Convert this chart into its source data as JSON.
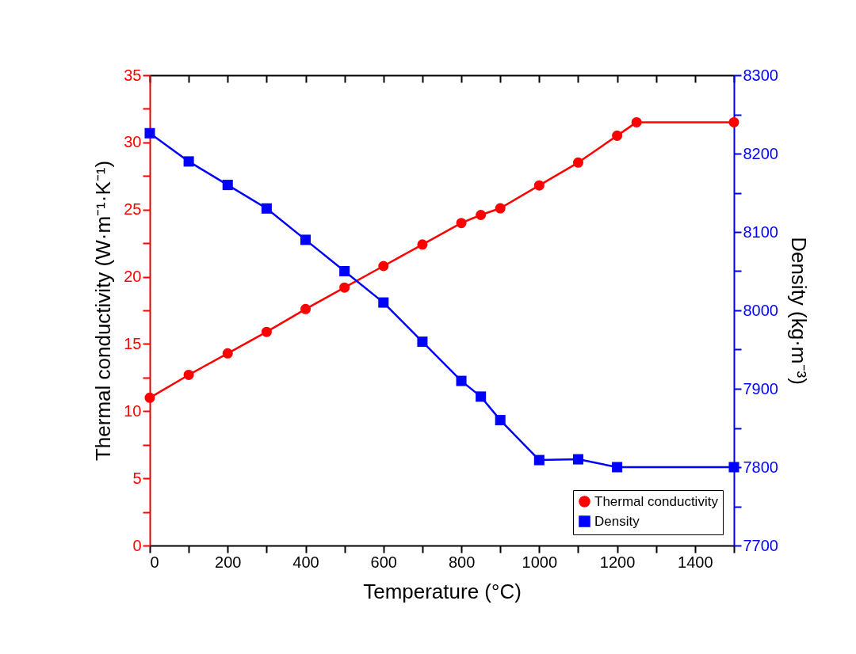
{
  "chart_data": {
    "type": "line",
    "xlabel": "Temperature (°C)",
    "ylabel": "Thermal conductivity (W·m⁻¹·K⁻¹)",
    "y2label": "Density (kg·m⁻³)",
    "xlim": [
      0,
      1500
    ],
    "xticks": [
      0,
      {
        "value": 100,
        "label": null
      },
      200,
      {
        "value": 300,
        "label": null
      },
      400,
      {
        "value": 500,
        "label": null
      },
      600,
      {
        "value": 700,
        "label": null
      },
      800,
      {
        "value": 900,
        "label": null
      },
      1000,
      {
        "value": 1100,
        "label": null
      },
      1200,
      {
        "value": 1300,
        "label": null
      },
      1400,
      {
        "value": 1500,
        "label": null
      }
    ],
    "ylim": [
      0,
      35
    ],
    "yticks": [
      0,
      {
        "value": 2.5,
        "label": null
      },
      5,
      {
        "value": 7.5,
        "label": null
      },
      10,
      {
        "value": 12.5,
        "label": null
      },
      15,
      {
        "value": 17.5,
        "label": null
      },
      20,
      {
        "value": 22.5,
        "label": null
      },
      25,
      {
        "value": 27.5,
        "label": null
      },
      30,
      {
        "value": 32.5,
        "label": null
      },
      35
    ],
    "y2lim": [
      7700,
      8300
    ],
    "y2ticks": [
      7700,
      {
        "value": 7750,
        "label": null
      },
      7800,
      {
        "value": 7850,
        "label": null
      },
      7900,
      {
        "value": 7950,
        "label": null
      },
      8000,
      {
        "value": 8050,
        "label": null
      },
      8100,
      {
        "value": 8150,
        "label": null
      },
      8200,
      {
        "value": 8250,
        "label": null
      },
      8300
    ],
    "grid": false,
    "legend": "bottom right",
    "series": [
      {
        "name": "Thermal conductivity",
        "color": "#ff0000",
        "marker": "circle",
        "x": [
          0,
          100,
          200,
          300,
          400,
          500,
          600,
          700,
          800,
          850,
          900,
          1000,
          1100,
          1200,
          1250,
          1500
        ],
        "values": [
          11.0,
          12.7,
          14.3,
          15.9,
          17.6,
          19.2,
          20.8,
          22.4,
          24.0,
          24.6,
          25.1,
          26.8,
          28.5,
          30.5,
          31.5,
          31.5
        ]
      },
      {
        "name": "Density",
        "color": "#0000ff",
        "marker": "square",
        "axis": "y2",
        "x": [
          0,
          100,
          200,
          300,
          400,
          500,
          600,
          700,
          800,
          850,
          900,
          1000,
          1100,
          1200,
          1500
        ],
        "values": [
          8226,
          8190,
          8160,
          8130,
          8090,
          8050,
          8010,
          7960,
          7910,
          7890,
          7860,
          7809,
          7810,
          7800,
          7800
        ]
      }
    ]
  }
}
